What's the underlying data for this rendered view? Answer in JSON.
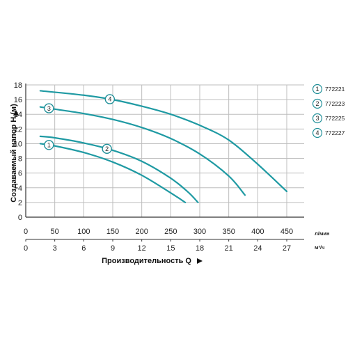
{
  "chart_data": {
    "type": "line",
    "title": "",
    "ylabel": "Создаваемый напор H (м)",
    "xlabel": "Производительность Q",
    "x_primary": {
      "unit": "л/мин",
      "ticks": [
        0,
        50,
        100,
        150,
        200,
        250,
        300,
        350,
        400,
        450
      ],
      "range": [
        0,
        480
      ]
    },
    "x_secondary": {
      "unit": "м³/ч",
      "ticks": [
        0,
        3,
        6,
        9,
        12,
        15,
        18,
        21,
        24,
        27
      ]
    },
    "ylim": [
      0,
      18
    ],
    "yticks": [
      0,
      2,
      4,
      6,
      8,
      10,
      12,
      14,
      16,
      18
    ],
    "grid": true,
    "legend_position": "right",
    "colors": {
      "curve": "#1f9aa3",
      "marker_stroke": "#1f8f98",
      "grid": "#bdbdbd",
      "axis": "#333333"
    },
    "series": [
      {
        "id": "1",
        "name": "772221",
        "marker_at": 40,
        "points": [
          [
            25,
            10
          ],
          [
            50,
            9.7
          ],
          [
            100,
            8.8
          ],
          [
            150,
            7.5
          ],
          [
            200,
            5.7
          ],
          [
            250,
            3.3
          ],
          [
            275,
            2
          ]
        ]
      },
      {
        "id": "2",
        "name": "772223",
        "marker_at": 140,
        "points": [
          [
            25,
            11
          ],
          [
            50,
            10.8
          ],
          [
            100,
            10.1
          ],
          [
            150,
            9.1
          ],
          [
            200,
            7.6
          ],
          [
            250,
            5.3
          ],
          [
            280,
            3.4
          ],
          [
            297,
            2
          ]
        ]
      },
      {
        "id": "3",
        "name": "772225",
        "marker_at": 40,
        "points": [
          [
            25,
            15
          ],
          [
            50,
            14.7
          ],
          [
            100,
            14.1
          ],
          [
            150,
            13.3
          ],
          [
            200,
            12.2
          ],
          [
            250,
            10.7
          ],
          [
            300,
            8.6
          ],
          [
            350,
            5.6
          ],
          [
            378,
            3
          ]
        ]
      },
      {
        "id": "4",
        "name": "772227",
        "marker_at": 145,
        "points": [
          [
            25,
            17.2
          ],
          [
            100,
            16.6
          ],
          [
            150,
            16
          ],
          [
            200,
            15.1
          ],
          [
            250,
            14
          ],
          [
            300,
            12.5
          ],
          [
            350,
            10.5
          ],
          [
            400,
            7.2
          ],
          [
            450,
            3.5
          ]
        ]
      }
    ]
  }
}
